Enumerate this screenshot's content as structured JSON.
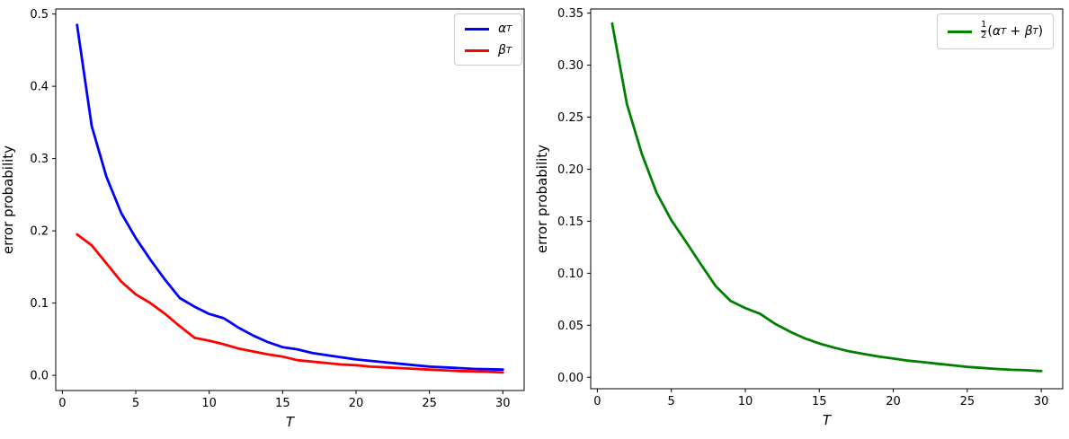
{
  "figure": {
    "background": "#ffffff"
  },
  "chart_data": [
    {
      "type": "line",
      "title": "",
      "xlabel": "T",
      "ylabel": "error probability",
      "grid": false,
      "legend_position": "upper right",
      "xlim": [
        -0.45,
        31.45
      ],
      "ylim": [
        -0.021,
        0.507
      ],
      "xticks": {
        "values": [
          0,
          5,
          10,
          15,
          20,
          25,
          30
        ],
        "labels": [
          "0",
          "5",
          "10",
          "15",
          "20",
          "25",
          "30"
        ]
      },
      "yticks": {
        "values": [
          0.0,
          0.1,
          0.2,
          0.3,
          0.4,
          0.5
        ],
        "labels": [
          "0.0",
          "0.1",
          "0.2",
          "0.3",
          "0.4",
          "0.5"
        ]
      },
      "x": [
        1,
        2,
        3,
        4,
        5,
        6,
        7,
        8,
        9,
        10,
        11,
        12,
        13,
        14,
        15,
        16,
        17,
        18,
        19,
        20,
        21,
        22,
        23,
        24,
        25,
        26,
        27,
        28,
        29,
        30
      ],
      "series": [
        {
          "key": "alpha",
          "name": "αT",
          "color": "#0000ff",
          "values": [
            0.485,
            0.345,
            0.275,
            0.225,
            0.19,
            0.16,
            0.132,
            0.107,
            0.095,
            0.085,
            0.079,
            0.066,
            0.055,
            0.046,
            0.039,
            0.036,
            0.031,
            0.028,
            0.025,
            0.022,
            0.02,
            0.018,
            0.016,
            0.014,
            0.012,
            0.011,
            0.01,
            0.009,
            0.0085,
            0.008
          ]
        },
        {
          "key": "beta",
          "name": "βT",
          "color": "#ff0000",
          "values": [
            0.195,
            0.18,
            0.155,
            0.13,
            0.112,
            0.1,
            0.085,
            0.068,
            0.052,
            0.048,
            0.043,
            0.037,
            0.033,
            0.029,
            0.026,
            0.021,
            0.019,
            0.017,
            0.015,
            0.014,
            0.012,
            0.011,
            0.01,
            0.009,
            0.008,
            0.007,
            0.006,
            0.0055,
            0.005,
            0.004
          ]
        }
      ],
      "legend": {
        "entries": [
          {
            "name": "αT",
            "color": "#0000ff",
            "tokens": {
              "base": "α",
              "sub": "T"
            }
          },
          {
            "name": "βT",
            "color": "#ff0000",
            "tokens": {
              "base": "β",
              "sub": "T"
            }
          }
        ]
      }
    },
    {
      "type": "line",
      "title": "",
      "xlabel": "T",
      "ylabel": "error probability",
      "grid": false,
      "legend_position": "upper right",
      "xlim": [
        -0.45,
        31.45
      ],
      "ylim": [
        -0.011,
        0.354
      ],
      "xticks": {
        "values": [
          0,
          5,
          10,
          15,
          20,
          25,
          30
        ],
        "labels": [
          "0",
          "5",
          "10",
          "15",
          "20",
          "25",
          "30"
        ]
      },
      "yticks": {
        "values": [
          0.0,
          0.05,
          0.1,
          0.15,
          0.2,
          0.25,
          0.3,
          0.35
        ],
        "labels": [
          "0.00",
          "0.05",
          "0.10",
          "0.15",
          "0.20",
          "0.25",
          "0.30",
          "0.35"
        ]
      },
      "x": [
        1,
        2,
        3,
        4,
        5,
        6,
        7,
        8,
        9,
        10,
        11,
        12,
        13,
        14,
        15,
        16,
        17,
        18,
        19,
        20,
        21,
        22,
        23,
        24,
        25,
        26,
        27,
        28,
        29,
        30
      ],
      "series": [
        {
          "key": "avg",
          "name": "½(αT + βT)",
          "color": "#008000",
          "values": [
            0.34,
            0.2625,
            0.215,
            0.1775,
            0.151,
            0.13,
            0.1085,
            0.0875,
            0.0735,
            0.0665,
            0.061,
            0.0515,
            0.044,
            0.0375,
            0.0325,
            0.0285,
            0.025,
            0.0225,
            0.02,
            0.018,
            0.016,
            0.0145,
            0.013,
            0.0115,
            0.01,
            0.009,
            0.008,
            0.00725,
            0.00675,
            0.006
          ]
        }
      ],
      "legend": {
        "entries": [
          {
            "name": "½(αT + βT)",
            "color": "#008000",
            "tokens": {
              "frac_num": "1",
              "frac_den": "2",
              "open": "(",
              "alpha": "α",
              "alpha_sub": "T",
              "plus": " + ",
              "beta": "β",
              "beta_sub": "T",
              "close": ")"
            }
          }
        ]
      }
    }
  ]
}
